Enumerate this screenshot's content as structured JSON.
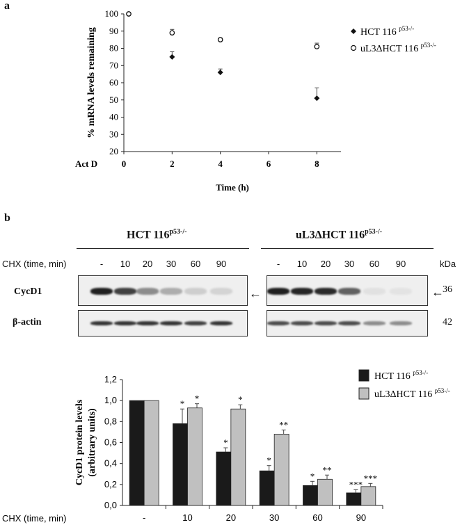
{
  "panel_a": {
    "label": "a",
    "actd_label": "Act D",
    "chart_data": {
      "type": "scatter",
      "xlabel": "Time (h)",
      "ylabel": "% mRNA levels remaining",
      "x_ticks": [
        0,
        2,
        4,
        6,
        8
      ],
      "y_ticks": [
        20,
        30,
        40,
        50,
        60,
        70,
        80,
        90,
        100
      ],
      "xlim": [
        0,
        9
      ],
      "ylim": [
        20,
        100
      ],
      "legend_position": "top-right",
      "series": [
        {
          "name": "HCT 116",
          "sup": "p53-/-",
          "marker": "diamond-filled",
          "x": [
            0,
            2,
            4,
            8
          ],
          "y": [
            100,
            75,
            66,
            51
          ],
          "err": [
            0,
            3,
            2,
            6
          ]
        },
        {
          "name": "uL3ΔHCT 116",
          "sup": "p53-/-",
          "marker": "circle-open",
          "x": [
            0,
            2,
            4,
            8
          ],
          "y": [
            100,
            89,
            85,
            81
          ],
          "err": [
            0,
            2,
            1,
            2
          ]
        }
      ]
    }
  },
  "panel_b": {
    "label": "b",
    "blot": {
      "group1_title": "HCT 116",
      "group1_sup": "p53-/-",
      "group2_title": "uL3ΔHCT 116",
      "group2_sup": "p53-/-",
      "chx_label": "CHX (time, min)",
      "lanes": [
        "-",
        "10",
        "20",
        "30",
        "60",
        "90"
      ],
      "kda_label": "kDa",
      "rows": [
        {
          "label": "CycD1",
          "kda": "36",
          "intensity_g1": [
            0.95,
            0.8,
            0.45,
            0.3,
            0.15,
            0.12
          ],
          "intensity_g2": [
            0.95,
            0.92,
            0.9,
            0.65,
            0.06,
            0.05
          ]
        },
        {
          "label": "β-actin",
          "kda": "42",
          "intensity_g1": [
            0.85,
            0.85,
            0.85,
            0.85,
            0.8,
            0.85
          ],
          "intensity_g2": [
            0.75,
            0.75,
            0.75,
            0.75,
            0.45,
            0.45
          ]
        }
      ]
    },
    "chart_data": {
      "type": "bar",
      "ylabel": "CycD1 protein levels (arbitrary units)",
      "ylabel_line1": "CycD1 protein levels",
      "ylabel_line2": "(arbitrary units)",
      "xlabel": "CHX (time, min)",
      "categories": [
        "-",
        "10",
        "20",
        "30",
        "60",
        "90"
      ],
      "y_ticks": [
        "0,0",
        "0,2",
        "0,4",
        "0,6",
        "0,8",
        "1,0",
        "1,2"
      ],
      "ylim": [
        0,
        1.2
      ],
      "legend_position": "top-right",
      "series": [
        {
          "name": "HCT 116",
          "sup": "p53-/-",
          "color": "#1a1a1a",
          "values": [
            1.0,
            0.78,
            0.51,
            0.33,
            0.19,
            0.12
          ],
          "err": [
            0,
            0.14,
            0.04,
            0.05,
            0.04,
            0.03
          ],
          "sig": [
            "",
            "*",
            "*",
            "*",
            "*",
            "***"
          ]
        },
        {
          "name": "uL3ΔHCT 116",
          "sup": "p53-/-",
          "color": "#c0c0c0",
          "values": [
            1.0,
            0.93,
            0.92,
            0.68,
            0.25,
            0.18
          ],
          "err": [
            0,
            0.04,
            0.04,
            0.04,
            0.04,
            0.03
          ],
          "sig": [
            "",
            "*",
            "*",
            "**",
            "**",
            "***"
          ]
        }
      ]
    }
  }
}
